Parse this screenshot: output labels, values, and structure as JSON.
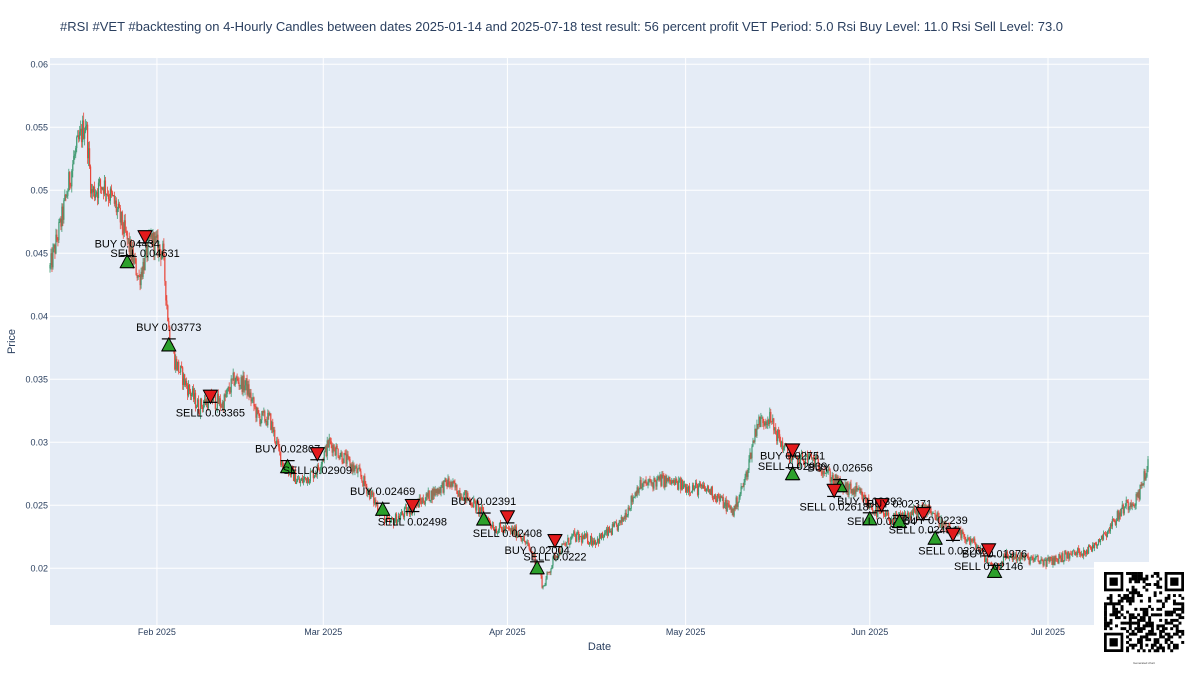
{
  "chart_data": {
    "type": "candlestick",
    "title": "#RSI #VET #backtesting on 4-Hourly Candles between dates 2025-01-14 and 2025-07-18 test result: 56 percent profit  VET Period: 5.0 Rsi Buy Level: 11.0 Rsi Sell Level: 73.0",
    "xlabel": "Date",
    "ylabel": "Price",
    "x_range": [
      "2025-01-14",
      "2025-07-18"
    ],
    "ylim": [
      0.0155,
      0.0605
    ],
    "y_ticks": [
      0.02,
      0.025,
      0.03,
      0.035,
      0.04,
      0.045,
      0.05,
      0.055,
      0.06
    ],
    "y_tick_labels": [
      "0.02",
      "0.025",
      "0.03",
      "0.035",
      "0.04",
      "0.045",
      "0.05",
      "0.055",
      "0.06"
    ],
    "x_ticks": [
      {
        "date": "2025-02-01",
        "label": "Feb 2025"
      },
      {
        "date": "2025-03-01",
        "label": "Mar 2025"
      },
      {
        "date": "2025-04-01",
        "label": "Apr 2025"
      },
      {
        "date": "2025-05-01",
        "label": "May 2025"
      },
      {
        "date": "2025-06-01",
        "label": "Jun 2025"
      },
      {
        "date": "2025-07-01",
        "label": "Jul 2025"
      }
    ],
    "grid": true,
    "colors": {
      "plot_bg": "#e5ecf6",
      "grid": "#ffffff",
      "up": "#3d9970",
      "down": "#e8473a",
      "buy": "#2ca02c",
      "sell": "#e31a1c"
    },
    "price_path": [
      {
        "date": "2025-01-14",
        "price": 0.0438
      },
      {
        "date": "2025-01-16",
        "price": 0.0478
      },
      {
        "date": "2025-01-18",
        "price": 0.0525
      },
      {
        "date": "2025-01-20",
        "price": 0.0555
      },
      {
        "date": "2025-01-21",
        "price": 0.0498
      },
      {
        "date": "2025-01-23",
        "price": 0.0505
      },
      {
        "date": "2025-01-25",
        "price": 0.0488
      },
      {
        "date": "2025-01-27",
        "price": 0.046
      },
      {
        "date": "2025-01-29",
        "price": 0.043
      },
      {
        "date": "2025-01-31",
        "price": 0.0462
      },
      {
        "date": "2025-02-02",
        "price": 0.045
      },
      {
        "date": "2025-02-03",
        "price": 0.039
      },
      {
        "date": "2025-02-04",
        "price": 0.0365
      },
      {
        "date": "2025-02-06",
        "price": 0.0345
      },
      {
        "date": "2025-02-08",
        "price": 0.0328
      },
      {
        "date": "2025-02-10",
        "price": 0.0335
      },
      {
        "date": "2025-02-12",
        "price": 0.033
      },
      {
        "date": "2025-02-14",
        "price": 0.035
      },
      {
        "date": "2025-02-16",
        "price": 0.0345
      },
      {
        "date": "2025-02-18",
        "price": 0.032
      },
      {
        "date": "2025-02-20",
        "price": 0.0318
      },
      {
        "date": "2025-02-22",
        "price": 0.0285
      },
      {
        "date": "2025-02-25",
        "price": 0.0268
      },
      {
        "date": "2025-02-28",
        "price": 0.0278
      },
      {
        "date": "2025-03-02",
        "price": 0.03
      },
      {
        "date": "2025-03-04",
        "price": 0.029
      },
      {
        "date": "2025-03-07",
        "price": 0.0275
      },
      {
        "date": "2025-03-10",
        "price": 0.025
      },
      {
        "date": "2025-03-12",
        "price": 0.0235
      },
      {
        "date": "2025-03-15",
        "price": 0.0245
      },
      {
        "date": "2025-03-18",
        "price": 0.0255
      },
      {
        "date": "2025-03-22",
        "price": 0.0268
      },
      {
        "date": "2025-03-26",
        "price": 0.0253
      },
      {
        "date": "2025-03-30",
        "price": 0.0232
      },
      {
        "date": "2025-04-03",
        "price": 0.0228
      },
      {
        "date": "2025-04-06",
        "price": 0.0205
      },
      {
        "date": "2025-04-07",
        "price": 0.0185
      },
      {
        "date": "2025-04-09",
        "price": 0.021
      },
      {
        "date": "2025-04-12",
        "price": 0.0225
      },
      {
        "date": "2025-04-16",
        "price": 0.0222
      },
      {
        "date": "2025-04-20",
        "price": 0.0235
      },
      {
        "date": "2025-04-23",
        "price": 0.0265
      },
      {
        "date": "2025-04-27",
        "price": 0.027
      },
      {
        "date": "2025-05-01",
        "price": 0.0265
      },
      {
        "date": "2025-05-05",
        "price": 0.0262
      },
      {
        "date": "2025-05-09",
        "price": 0.0245
      },
      {
        "date": "2025-05-11",
        "price": 0.027
      },
      {
        "date": "2025-05-13",
        "price": 0.0315
      },
      {
        "date": "2025-05-15",
        "price": 0.032
      },
      {
        "date": "2025-05-17",
        "price": 0.03
      },
      {
        "date": "2025-05-19",
        "price": 0.0285
      },
      {
        "date": "2025-05-22",
        "price": 0.0288
      },
      {
        "date": "2025-05-24",
        "price": 0.028
      },
      {
        "date": "2025-05-27",
        "price": 0.0265
      },
      {
        "date": "2025-05-30",
        "price": 0.026
      },
      {
        "date": "2025-06-02",
        "price": 0.0245
      },
      {
        "date": "2025-06-05",
        "price": 0.0238
      },
      {
        "date": "2025-06-09",
        "price": 0.0245
      },
      {
        "date": "2025-06-11",
        "price": 0.0248
      },
      {
        "date": "2025-06-14",
        "price": 0.023
      },
      {
        "date": "2025-06-17",
        "price": 0.0225
      },
      {
        "date": "2025-06-19",
        "price": 0.0218
      },
      {
        "date": "2025-06-22",
        "price": 0.0198
      },
      {
        "date": "2025-06-24",
        "price": 0.021
      },
      {
        "date": "2025-06-27",
        "price": 0.0208
      },
      {
        "date": "2025-07-01",
        "price": 0.0205
      },
      {
        "date": "2025-07-04",
        "price": 0.021
      },
      {
        "date": "2025-07-08",
        "price": 0.0215
      },
      {
        "date": "2025-07-11",
        "price": 0.023
      },
      {
        "date": "2025-07-14",
        "price": 0.025
      },
      {
        "date": "2025-07-16",
        "price": 0.0255
      },
      {
        "date": "2025-07-18",
        "price": 0.0285
      }
    ],
    "trades": [
      {
        "side": "buy",
        "date": "2025-01-27",
        "price": 0.04434,
        "label": "BUY 0.04434"
      },
      {
        "side": "sell",
        "date": "2025-01-30",
        "price": 0.04631,
        "label": "SELL 0.04631"
      },
      {
        "side": "buy",
        "date": "2025-02-03",
        "price": 0.03773,
        "label": "BUY 0.03773"
      },
      {
        "side": "sell",
        "date": "2025-02-10",
        "price": 0.03365,
        "label": "SELL 0.03365"
      },
      {
        "side": "buy",
        "date": "2025-02-23",
        "price": 0.02807,
        "label": "BUY 0.02807"
      },
      {
        "side": "sell",
        "date": "2025-02-28",
        "price": 0.02909,
        "label": "SELL 0.02909"
      },
      {
        "side": "buy",
        "date": "2025-03-11",
        "price": 0.02469,
        "label": "BUY 0.02469"
      },
      {
        "side": "sell",
        "date": "2025-03-16",
        "price": 0.02498,
        "label": "SELL 0.02498"
      },
      {
        "side": "buy",
        "date": "2025-03-28",
        "price": 0.02391,
        "label": "BUY 0.02391"
      },
      {
        "side": "sell",
        "date": "2025-04-01",
        "price": 0.02408,
        "label": "SELL 0.02408"
      },
      {
        "side": "buy",
        "date": "2025-04-06",
        "price": 0.02004,
        "label": "BUY 0.02004"
      },
      {
        "side": "sell",
        "date": "2025-04-09",
        "price": 0.0222,
        "label": "SELL 0.0222"
      },
      {
        "side": "buy",
        "date": "2025-05-19",
        "price": 0.02751,
        "label": "BUY 0.02751"
      },
      {
        "side": "sell",
        "date": "2025-05-19",
        "price": 0.02939,
        "label": "SELL 0.02939"
      },
      {
        "side": "buy",
        "date": "2025-05-27",
        "price": 0.02656,
        "label": "BUY 0.02656"
      },
      {
        "side": "sell",
        "date": "2025-05-26",
        "price": 0.02618,
        "label": "SELL 0.02618"
      },
      {
        "side": "buy",
        "date": "2025-06-01",
        "price": 0.02393,
        "label": "BUY 0.02393"
      },
      {
        "side": "sell",
        "date": "2025-06-03",
        "price": 0.02504,
        "label": "SELL 0.02504"
      },
      {
        "side": "buy",
        "date": "2025-06-06",
        "price": 0.02371,
        "label": "BUY 0.02371"
      },
      {
        "side": "sell",
        "date": "2025-06-10",
        "price": 0.02434,
        "label": "SELL 0.02434"
      },
      {
        "side": "buy",
        "date": "2025-06-12",
        "price": 0.02239,
        "label": "BUY 0.02239"
      },
      {
        "side": "sell",
        "date": "2025-06-15",
        "price": 0.02269,
        "label": "SELL 0.02269"
      },
      {
        "side": "buy",
        "date": "2025-06-22",
        "price": 0.01976,
        "label": "BUY 0.01976"
      },
      {
        "side": "sell",
        "date": "2025-06-21",
        "price": 0.02146,
        "label": "SELL 0.02146"
      }
    ]
  },
  "qr_code": {
    "caption": "Generated chart"
  }
}
